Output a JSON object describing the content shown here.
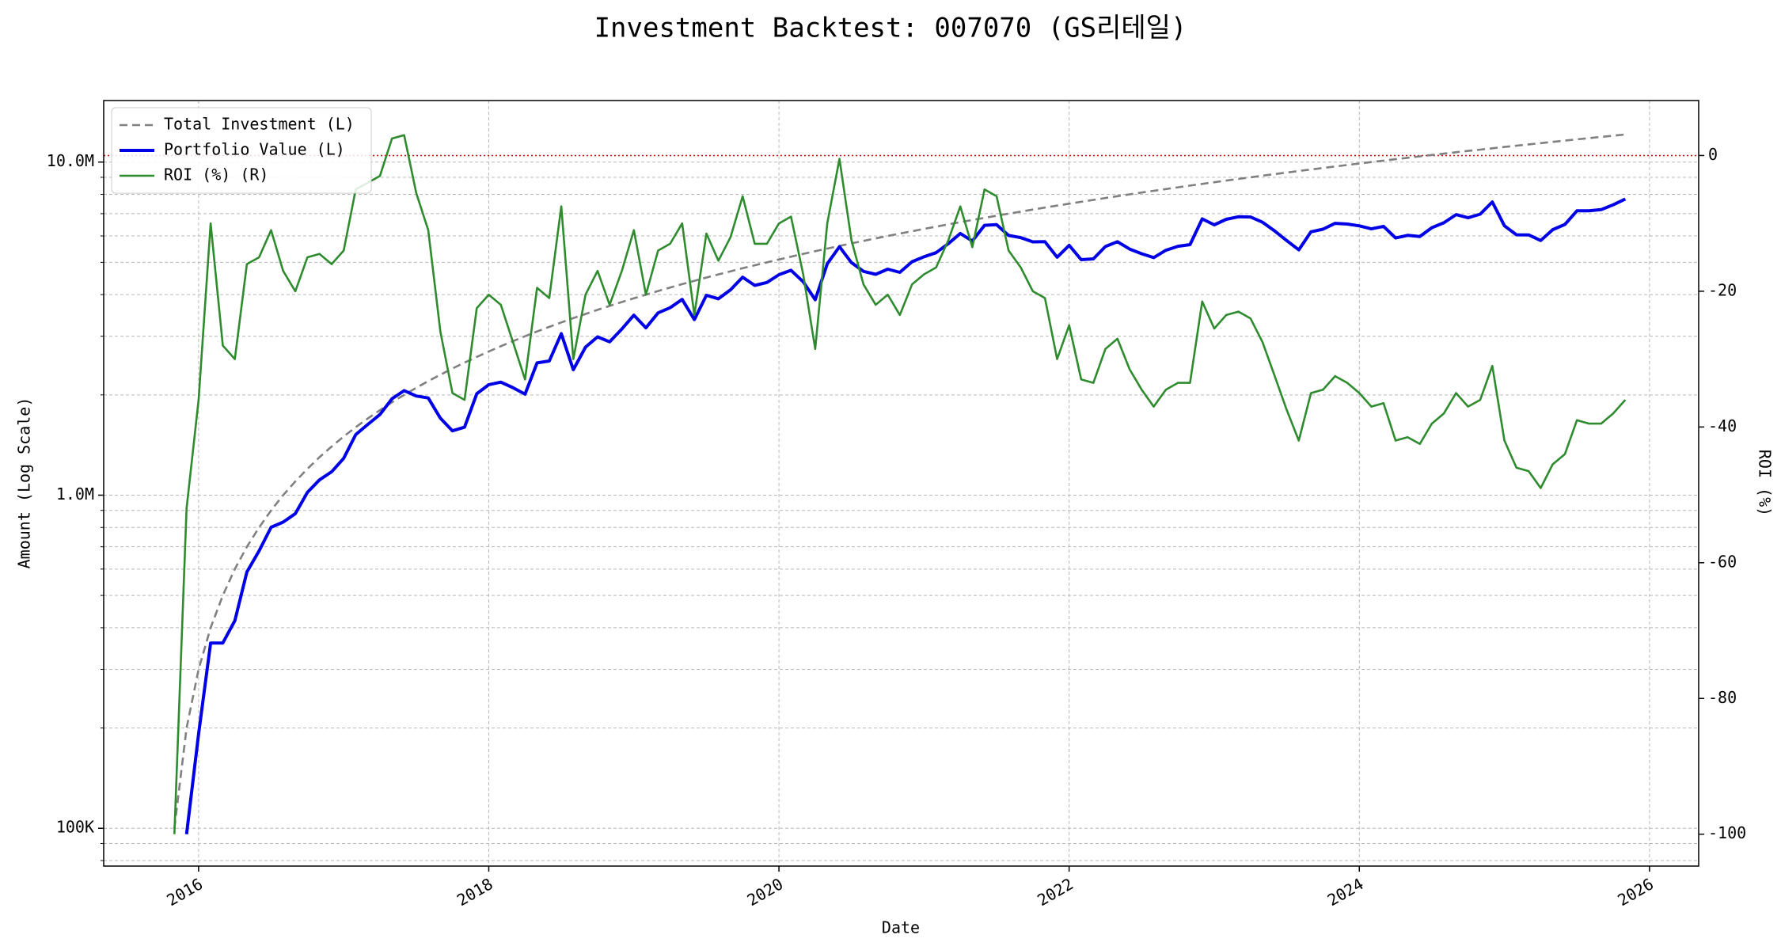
{
  "chart_data": {
    "type": "line",
    "title": "Investment Backtest: 007070 (GS리테일)",
    "xlabel": "Date",
    "ylabel": "Amount (Log Scale)",
    "y2label": "ROI (%)",
    "ylabel_color": "#0000dd",
    "y2label_color": "#2a8c2a",
    "log_y": true,
    "grid": true,
    "legend": "upper left",
    "xlim": [
      2015.346,
      2026.339
    ],
    "xticks": [
      2016,
      2018,
      2020,
      2022,
      2024,
      2026
    ],
    "ylim": [
      77000,
      15300000
    ],
    "yticks": [
      {
        "value": 100000,
        "label": "100K"
      },
      {
        "value": 1000000,
        "label": "1.0M"
      },
      {
        "value": 10000000,
        "label": "10.0M"
      }
    ],
    "y2lim": [
      -104.7,
      8.1
    ],
    "y2ticks": [
      -100,
      -80,
      -60,
      -40,
      -20,
      0
    ],
    "hline": {
      "value": 0,
      "axis": "y2",
      "color": "#cc0000"
    },
    "x": [
      2015.833,
      2015.917,
      2016.0,
      2016.083,
      2016.167,
      2016.25,
      2016.333,
      2016.417,
      2016.5,
      2016.583,
      2016.667,
      2016.75,
      2016.833,
      2016.917,
      2017.0,
      2017.083,
      2017.167,
      2017.25,
      2017.333,
      2017.417,
      2017.5,
      2017.583,
      2017.667,
      2017.75,
      2017.833,
      2017.917,
      2018.0,
      2018.083,
      2018.167,
      2018.25,
      2018.333,
      2018.417,
      2018.5,
      2018.583,
      2018.667,
      2018.75,
      2018.833,
      2018.917,
      2019.0,
      2019.083,
      2019.167,
      2019.25,
      2019.333,
      2019.417,
      2019.5,
      2019.583,
      2019.667,
      2019.75,
      2019.833,
      2019.917,
      2020.0,
      2020.083,
      2020.167,
      2020.25,
      2020.333,
      2020.417,
      2020.5,
      2020.583,
      2020.667,
      2020.75,
      2020.833,
      2020.917,
      2021.0,
      2021.083,
      2021.167,
      2021.25,
      2021.333,
      2021.417,
      2021.5,
      2021.583,
      2021.667,
      2021.75,
      2021.833,
      2021.917,
      2022.0,
      2022.083,
      2022.167,
      2022.25,
      2022.333,
      2022.417,
      2022.5,
      2022.583,
      2022.667,
      2022.75,
      2022.833,
      2022.917,
      2023.0,
      2023.083,
      2023.167,
      2023.25,
      2023.333,
      2023.417,
      2023.5,
      2023.583,
      2023.667,
      2023.75,
      2023.833,
      2023.917,
      2024.0,
      2024.083,
      2024.167,
      2024.25,
      2024.333,
      2024.417,
      2024.5,
      2024.583,
      2024.667,
      2024.75,
      2024.833,
      2024.917,
      2025.0,
      2025.083,
      2025.167,
      2025.25,
      2025.333,
      2025.417,
      2025.5,
      2025.583,
      2025.667,
      2025.75,
      2025.833
    ],
    "series": [
      {
        "name": "Total Investment (L)",
        "color": "#808080",
        "axis": "y",
        "dash": true,
        "width": 2.6,
        "values": [
          100000,
          200000,
          300000,
          400000,
          500000,
          600000,
          700000,
          800000,
          900000,
          1000000,
          1100000,
          1200000,
          1300000,
          1400000,
          1500000,
          1600000,
          1700000,
          1800000,
          1900000,
          2000000,
          2100000,
          2200000,
          2300000,
          2400000,
          2500000,
          2600000,
          2700000,
          2800000,
          2900000,
          3000000,
          3100000,
          3200000,
          3300000,
          3400000,
          3500000,
          3600000,
          3700000,
          3800000,
          3900000,
          4000000,
          4100000,
          4200000,
          4300000,
          4400000,
          4500000,
          4600000,
          4700000,
          4800000,
          4900000,
          5000000,
          5100000,
          5200000,
          5300000,
          5400000,
          5500000,
          5600000,
          5700000,
          5800000,
          5900000,
          6000000,
          6100000,
          6200000,
          6300000,
          6400000,
          6500000,
          6600000,
          6700000,
          6800000,
          6900000,
          7000000,
          7100000,
          7200000,
          7300000,
          7400000,
          7500000,
          7600000,
          7700000,
          7800000,
          7900000,
          8000000,
          8100000,
          8200000,
          8300000,
          8400000,
          8500000,
          8600000,
          8700000,
          8800000,
          8900000,
          9000000,
          9100000,
          9200000,
          9300000,
          9400000,
          9500000,
          9600000,
          9700000,
          9800000,
          9900000,
          10000000,
          10100000,
          10200000,
          10300000,
          10400000,
          10500000,
          10600000,
          10700000,
          10800000,
          10900000,
          11000000,
          11100000,
          11200000,
          11300000,
          11400000,
          11500000,
          11600000,
          11700000,
          11800000,
          11900000,
          12000000,
          12100000
        ]
      },
      {
        "name": "Portfolio Value (L)",
        "color": "#0000e6",
        "axis": "y",
        "dash": false,
        "width": 4,
        "values": [
          null,
          96000,
          192000,
          360000,
          360000,
          420000,
          588000,
          680000,
          801000,
          830000,
          880000,
          1020000,
          1111500,
          1176000,
          1290000,
          1520000,
          1632000,
          1746000,
          1947500,
          2060000,
          1984500,
          1958000,
          1702000,
          1560000,
          1600000,
          2015000,
          2146500,
          2184000,
          2102500,
          2010000,
          2495500,
          2528000,
          3052500,
          2380000,
          2782500,
          2988000,
          2886000,
          3154000,
          3471000,
          3180000,
          3526000,
          3654000,
          3870000,
          3366000,
          3982500,
          3887000,
          4136000,
          4512000,
          4263000,
          4350000,
          4590000,
          4732000,
          4372500,
          3861000,
          4950000,
          5572000,
          4987500,
          4698000,
          4602000,
          4770000,
          4666500,
          5022000,
          5197500,
          5344000,
          5687500,
          6105000,
          5795500,
          6460000,
          6486000,
          6020000,
          5928500,
          5760000,
          5767000,
          5180000,
          5625000,
          5092000,
          5120500,
          5577000,
          5767000,
          5480000,
          5305500,
          5166000,
          5436500,
          5586000,
          5652500,
          6751000,
          6481500,
          6732000,
          6853000,
          6840000,
          6597500,
          6210000,
          5812500,
          5452000,
          6175000,
          6288000,
          6547500,
          6517000,
          6435000,
          6300000,
          6413500,
          5916000,
          6025500,
          5980000,
          6352500,
          6572000,
          6955000,
          6804000,
          6976000,
          7590000,
          6438000,
          6048000,
          6045500,
          5814000,
          6267500,
          6496000,
          7137000,
          7139000,
          7199500,
          7440000,
          7744000
        ]
      },
      {
        "name": "ROI (%) (R)",
        "color": "#2e8b2e",
        "axis": "y2",
        "dash": false,
        "width": 2.6,
        "values": [
          -100,
          -52,
          -36,
          -10,
          -28,
          -30,
          -16,
          -15,
          -11,
          -17,
          -20,
          -15,
          -14.5,
          -16,
          -14,
          -5,
          -4,
          -3,
          2.5,
          3,
          -5.5,
          -11,
          -26,
          -35,
          -36,
          -22.5,
          -20.5,
          -22,
          -27.5,
          -33,
          -19.5,
          -21,
          -7.5,
          -30,
          -20.5,
          -17,
          -22,
          -17,
          -11,
          -20.5,
          -14,
          -13,
          -10,
          -23.5,
          -11.5,
          -15.5,
          -12,
          -6,
          -13,
          -13,
          -10,
          -9,
          -17.5,
          -28.5,
          -10,
          -0.5,
          -12.5,
          -19,
          -22,
          -20.5,
          -23.5,
          -19,
          -17.5,
          -16.5,
          -12.5,
          -7.5,
          -13.5,
          -5,
          -6,
          -14,
          -16.5,
          -20,
          -21,
          -30,
          -25,
          -33,
          -33.5,
          -28.5,
          -27,
          -31.5,
          -34.5,
          -37,
          -34.5,
          -33.5,
          -33.5,
          -21.5,
          -25.5,
          -23.5,
          -23,
          -24,
          -27.5,
          -32.5,
          -37.5,
          -42,
          -35,
          -34.5,
          -32.5,
          -33.5,
          -35,
          -37,
          -36.5,
          -42,
          -41.5,
          -42.5,
          -39.5,
          -38,
          -35,
          -37,
          -36,
          -31,
          -42,
          -46,
          -46.5,
          -49,
          -45.5,
          -44,
          -39,
          -39.5,
          -39.5,
          -38,
          -36
        ]
      }
    ]
  }
}
